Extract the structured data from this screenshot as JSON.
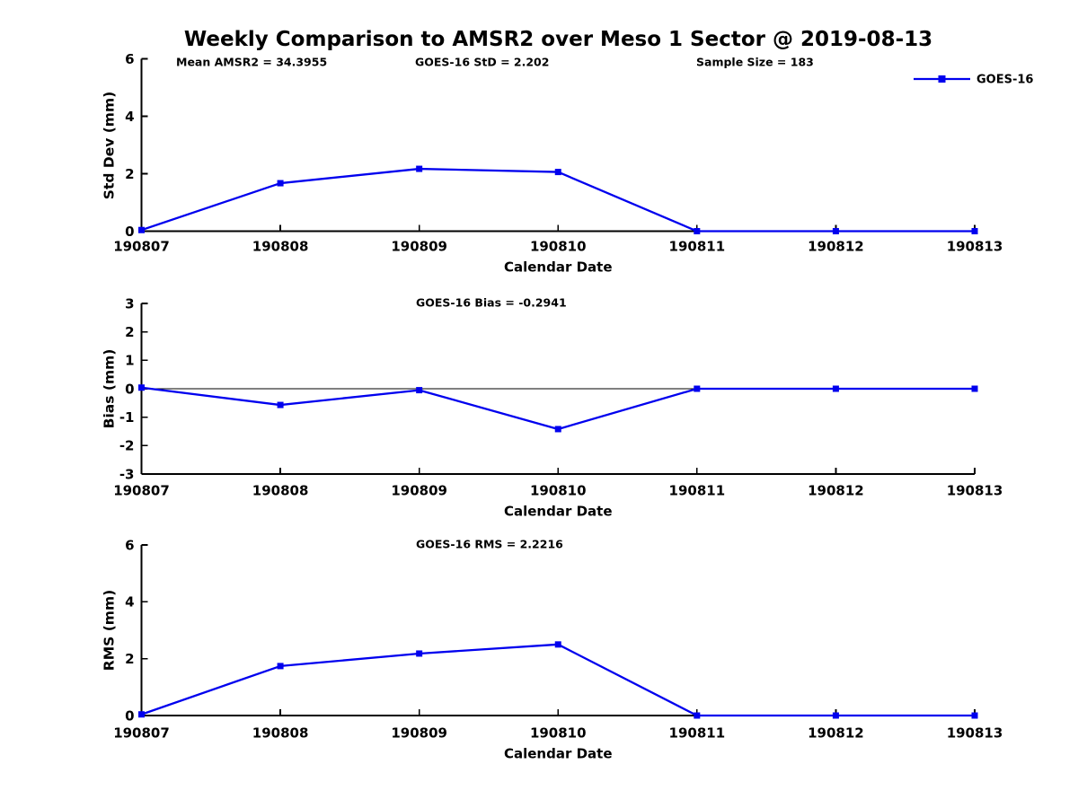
{
  "title": "Weekly Comparison to AMSR2 over Meso 1 Sector @ 2019-08-13",
  "colors": {
    "series": "#0000EE",
    "axis": "#000000",
    "text": "#000000",
    "background": "#ffffff"
  },
  "legend": {
    "label": "GOES-16",
    "position": "top-right",
    "marker": "filled-square"
  },
  "chart_data": [
    {
      "type": "line",
      "name": "std-dev-panel",
      "categories": [
        "190807",
        "190808",
        "190809",
        "190810",
        "190811",
        "190812",
        "190813"
      ],
      "series": [
        {
          "name": "GOES-16",
          "values": [
            0.04,
            1.67,
            2.17,
            2.06,
            0.0,
            0.0,
            0.0
          ]
        }
      ],
      "xlabel": "Calendar Date",
      "ylabel": "Std Dev (mm)",
      "ylim": [
        0,
        6
      ],
      "yticks": [
        0,
        2,
        4,
        6
      ],
      "grid": false,
      "zero_line": false,
      "legend_visible": true,
      "annotations": [
        "Mean AMSR2 = 34.3955",
        "GOES-16 StD = 2.202",
        "Sample Size = 183"
      ],
      "stats": {
        "mean_amsr2": 34.3955,
        "goes16_std": 2.202,
        "sample_size": 183
      }
    },
    {
      "type": "line",
      "name": "bias-panel",
      "categories": [
        "190807",
        "190808",
        "190809",
        "190810",
        "190811",
        "190812",
        "190813"
      ],
      "series": [
        {
          "name": "GOES-16",
          "values": [
            0.04,
            -0.57,
            -0.05,
            -1.42,
            0.0,
            0.0,
            0.0
          ]
        }
      ],
      "xlabel": "Calendar Date",
      "ylabel": "Bias (mm)",
      "ylim": [
        -3,
        3
      ],
      "yticks": [
        -3,
        -2,
        -1,
        0,
        1,
        2,
        3
      ],
      "grid": false,
      "zero_line": true,
      "legend_visible": false,
      "annotations": [
        "GOES-16 Bias  = -0.2941"
      ],
      "stats": {
        "goes16_bias": -0.2941
      }
    },
    {
      "type": "line",
      "name": "rms-panel",
      "categories": [
        "190807",
        "190808",
        "190809",
        "190810",
        "190811",
        "190812",
        "190813"
      ],
      "series": [
        {
          "name": "GOES-16",
          "values": [
            0.04,
            1.74,
            2.18,
            2.5,
            0.0,
            0.0,
            0.0
          ]
        }
      ],
      "xlabel": "Calendar Date",
      "ylabel": "RMS (mm)",
      "ylim": [
        0,
        6
      ],
      "yticks": [
        0,
        2,
        4,
        6
      ],
      "grid": false,
      "zero_line": false,
      "legend_visible": false,
      "annotations": [
        "GOES-16 RMS = 2.2216"
      ],
      "stats": {
        "goes16_rms": 2.2216
      }
    }
  ]
}
